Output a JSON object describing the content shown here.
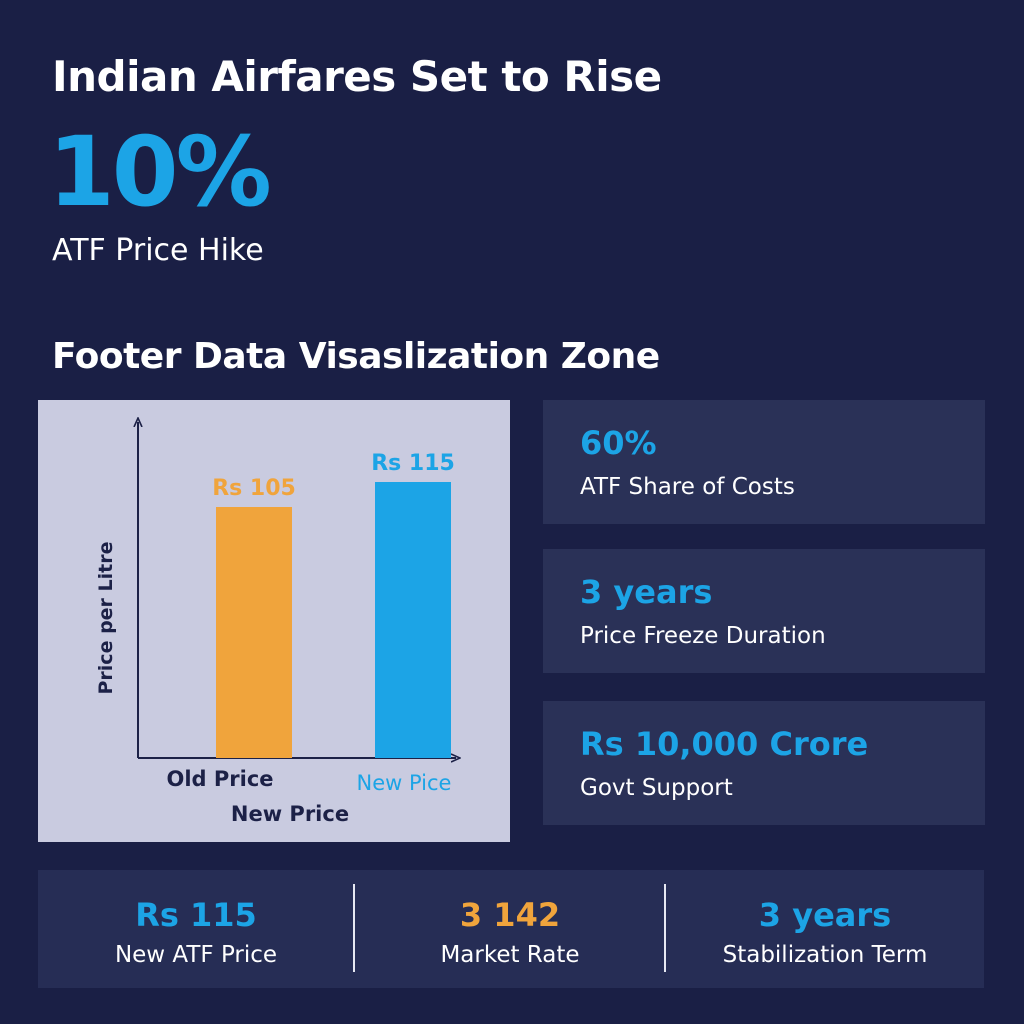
{
  "headline": "Indian Airfares Set to Rise",
  "hero": {
    "value": "10%",
    "label": "ATF Price Hike"
  },
  "section_title": "Footer Data Visaslization Zone",
  "colors": {
    "background": "#1a1f45",
    "accent_blue": "#1ca4e6",
    "accent_orange": "#f0a43c",
    "card": "#2a3157",
    "chart_panel": "#c9cbe0",
    "axis_text": "#1c2147"
  },
  "chart_data": {
    "type": "bar",
    "title": "",
    "ylabel": "Price per Litre",
    "xlabel": "New Price",
    "categories": [
      "Old Price",
      "New Pice"
    ],
    "values": [
      105,
      115
    ],
    "data_labels": [
      "Rs 105",
      "Rs 115"
    ],
    "bar_colors": [
      "#f0a43c",
      "#1ca4e6"
    ],
    "category_label_colors": [
      "#1c2147",
      "#1ca4e6"
    ],
    "grid": false,
    "legend": "none"
  },
  "stats": [
    {
      "value": "60%",
      "label": "ATF Share of Costs"
    },
    {
      "value": "3 years",
      "label": "Price Freeze Duration"
    },
    {
      "value": "Rs 10,000 Crore",
      "label": "Govt Support"
    }
  ],
  "footer": [
    {
      "value": "Rs 115",
      "label": "New ATF Price",
      "color": "#1ca4e6"
    },
    {
      "value": "3 142",
      "label": "Market Rate",
      "color": "#f0a43c"
    },
    {
      "value": "3 years",
      "label": "Stabilization Term",
      "color": "#1ca4e6"
    }
  ]
}
